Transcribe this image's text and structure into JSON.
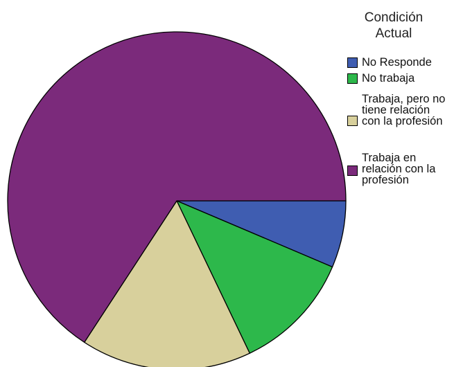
{
  "chart_data": {
    "type": "pie",
    "legend_title": "Condición Actual",
    "legend_position": "right",
    "slices": [
      {
        "label": "No Responde",
        "value": 6.4,
        "color": "#3f5db1"
      },
      {
        "label": "No trabaja",
        "value": 11.5,
        "color": "#2db84b"
      },
      {
        "label": "Trabaja, pero no tiene relación con la profesión",
        "value": 16.3,
        "color": "#d8d09c"
      },
      {
        "label": "Trabaja en relación con la profesión",
        "value": 65.8,
        "color": "#7b2a7b"
      }
    ]
  }
}
